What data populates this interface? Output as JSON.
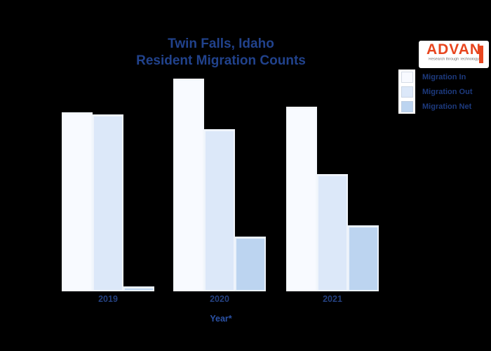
{
  "page": {
    "background_color": "#000000"
  },
  "title": {
    "line1": "Twin Falls, Idaho",
    "line2": "Resident Migration Counts",
    "color": "#21428c"
  },
  "logo": {
    "name": "ADVAN",
    "tagline": "Research through Technology",
    "brand_color": "#e8461f"
  },
  "legend": {
    "items": [
      {
        "label": "Migration In",
        "color": "#f8faff"
      },
      {
        "label": "Migration Out",
        "color": "#dce8f9"
      },
      {
        "label": "Migration Net",
        "color": "#bcd4f0"
      }
    ]
  },
  "x_axis": {
    "title": "Year*",
    "ticks": [
      "2019",
      "2020",
      "2021"
    ]
  },
  "chart_data": {
    "type": "bar",
    "title": "Twin Falls, Idaho Resident Migration Counts",
    "categories": [
      "2019",
      "2020",
      "2021"
    ],
    "series": [
      {
        "name": "Migration In",
        "color": "#f8faff",
        "values": [
          2550,
          3030,
          2630
        ]
      },
      {
        "name": "Migration Out",
        "color": "#dce8f9",
        "values": [
          2520,
          2310,
          1670
        ]
      },
      {
        "name": "Migration Net",
        "color": "#bcd4f0",
        "values": [
          70,
          780,
          940
        ]
      }
    ],
    "xlabel": "Year*",
    "ylabel": "",
    "ylim": [
      0,
      3200
    ],
    "grid": false,
    "y_axis_visible": false,
    "legend_position": "upper right"
  }
}
